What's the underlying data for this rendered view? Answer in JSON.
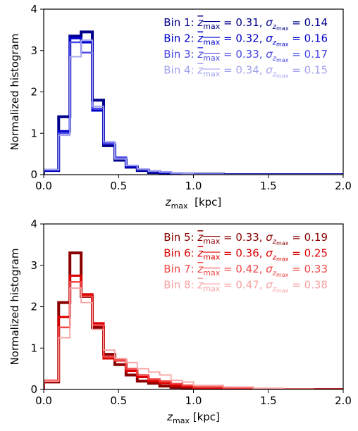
{
  "chart_data": [
    {
      "type": "histogram-step",
      "xlabel": "z_max  [kpc]",
      "ylabel": "Normalized histogram",
      "xlim": [
        0,
        2.0
      ],
      "ylim": [
        0,
        4
      ],
      "xticks": [
        "0.0",
        "0.5",
        "1.0",
        "1.5",
        "2.0"
      ],
      "yticks": [
        "0",
        "1",
        "2",
        "3",
        "4"
      ],
      "legend_placement": "top-right",
      "bin_edges": [
        0,
        0.1,
        0.175,
        0.25,
        0.325,
        0.4,
        0.475,
        0.55,
        0.625,
        0.7,
        0.775,
        0.85,
        0.925,
        1.0,
        1.2,
        1.4,
        1.6,
        1.8,
        2.0
      ],
      "series": [
        {
          "name": "Bin 1",
          "label_text": "Bin 1: ",
          "mean_text": " = 0.31, ",
          "sigma_text": " = 0.14",
          "color": "#00008b",
          "width": 4,
          "values": [
            0.1,
            1.4,
            3.35,
            3.45,
            1.8,
            0.7,
            0.35,
            0.18,
            0.1,
            0.05,
            0.02,
            0.01,
            0.01,
            0.01,
            0.0,
            0.0,
            0.0,
            0.0
          ]
        },
        {
          "name": "Bin 2",
          "label_text": "Bin 2: ",
          "mean_text": " = 0.32, ",
          "sigma_text": " = 0.16",
          "color": "#0000cd",
          "width": 3.2,
          "values": [
            0.1,
            1.05,
            3.3,
            3.2,
            1.55,
            0.75,
            0.4,
            0.2,
            0.12,
            0.08,
            0.05,
            0.03,
            0.02,
            0.01,
            0.0,
            0.0,
            0.0,
            0.0
          ]
        },
        {
          "name": "Bin 3",
          "label_text": "Bin 3: ",
          "mean_text": " = 0.33, ",
          "sigma_text": " = 0.17",
          "color": "#4a4ae6",
          "width": 2.4,
          "values": [
            0.12,
            1.0,
            3.2,
            2.95,
            1.6,
            0.75,
            0.42,
            0.22,
            0.12,
            0.08,
            0.06,
            0.03,
            0.02,
            0.01,
            0.0,
            0.0,
            0.0,
            0.0
          ]
        },
        {
          "name": "Bin 4",
          "label_text": "Bin 4: ",
          "mean_text": " = 0.34, ",
          "sigma_text": " = 0.15",
          "color": "#a3a3f0",
          "width": 1.8,
          "values": [
            0.12,
            0.95,
            2.85,
            3.25,
            1.65,
            0.8,
            0.38,
            0.22,
            0.14,
            0.09,
            0.06,
            0.04,
            0.02,
            0.01,
            0.0,
            0.0,
            0.0,
            0.0
          ]
        }
      ]
    },
    {
      "type": "histogram-step",
      "xlabel": "z_max [kpc]",
      "ylabel": "Normalized histogram",
      "xlim": [
        0,
        2.0
      ],
      "ylim": [
        0,
        4
      ],
      "xticks": [
        "0.0",
        "0.5",
        "1.0",
        "1.5",
        "2.0"
      ],
      "yticks": [
        "0",
        "1",
        "2",
        "3",
        "4"
      ],
      "legend_placement": "top-right",
      "bin_edges": [
        0,
        0.1,
        0.175,
        0.25,
        0.325,
        0.4,
        0.475,
        0.55,
        0.625,
        0.7,
        0.775,
        0.85,
        0.925,
        1.0,
        1.2,
        1.4,
        1.6,
        1.8,
        2.0
      ],
      "series": [
        {
          "name": "Bin 5",
          "label_text": "Bin 5: ",
          "mean_text": " = 0.33, ",
          "sigma_text": " = 0.19",
          "color": "#8b0000",
          "width": 4,
          "values": [
            0.18,
            2.1,
            3.3,
            2.25,
            1.5,
            0.85,
            0.6,
            0.35,
            0.2,
            0.15,
            0.08,
            0.05,
            0.03,
            0.02,
            0.01,
            0.0,
            0.0,
            0.0
          ]
        },
        {
          "name": "Bin 6",
          "label_text": "Bin 6: ",
          "mean_text": " = 0.36, ",
          "sigma_text": " = 0.25",
          "color": "#dd0000",
          "width": 3.2,
          "values": [
            0.2,
            1.75,
            2.75,
            2.3,
            1.6,
            0.75,
            0.7,
            0.45,
            0.3,
            0.2,
            0.15,
            0.1,
            0.07,
            0.04,
            0.02,
            0.01,
            0.0,
            0.0
          ]
        },
        {
          "name": "Bin 7",
          "label_text": "Bin 7: ",
          "mean_text": " = 0.42, ",
          "sigma_text": " = 0.33",
          "color": "#f24747",
          "width": 2.4,
          "values": [
            0.22,
            1.5,
            2.6,
            2.25,
            1.55,
            0.8,
            0.7,
            0.5,
            0.35,
            0.25,
            0.2,
            0.14,
            0.1,
            0.06,
            0.04,
            0.02,
            0.01,
            0.0
          ]
        },
        {
          "name": "Bin 8",
          "label_text": "Bin 8: ",
          "mean_text": " = 0.47, ",
          "sigma_text": " = 0.38",
          "color": "#f7a3a3",
          "width": 1.8,
          "values": [
            0.2,
            1.25,
            2.45,
            2.1,
            1.45,
            0.95,
            0.75,
            0.65,
            0.5,
            0.42,
            0.35,
            0.22,
            0.18,
            0.1,
            0.06,
            0.03,
            0.01,
            0.0
          ]
        }
      ]
    }
  ]
}
